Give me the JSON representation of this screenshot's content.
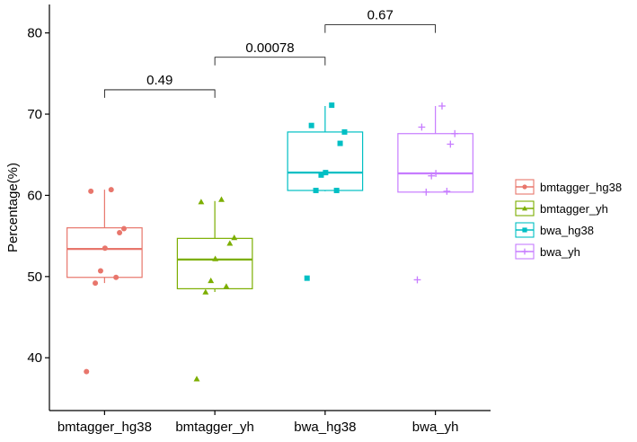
{
  "chart_data": {
    "type": "box",
    "title": "",
    "xlabel": "",
    "ylabel": "Percentage(%)",
    "ylim": [
      33.5,
      83.5
    ],
    "yticks": [
      40,
      50,
      60,
      70,
      80
    ],
    "grid": false,
    "legend_position": "right",
    "categories": [
      "bmtagger_hg38",
      "bmtagger_yh",
      "bwa_hg38",
      "bwa_yh"
    ],
    "series": [
      {
        "name": "bmtagger_hg38",
        "color": "#E8766C",
        "marker": "circle",
        "box": {
          "min": 49.2,
          "q1": 49.9,
          "median": 53.4,
          "q3": 56.0,
          "max": 60.7
        },
        "points": [
          38.3,
          49.2,
          49.9,
          50.7,
          53.5,
          55.4,
          55.9,
          60.5,
          60.7
        ]
      },
      {
        "name": "bmtagger_yh",
        "color": "#7CAE00",
        "marker": "triangle",
        "box": {
          "min": 48.1,
          "q1": 48.5,
          "median": 52.1,
          "q3": 54.7,
          "max": 59.3
        },
        "points": [
          37.4,
          48.1,
          48.8,
          49.5,
          52.2,
          54.1,
          54.8,
          59.2,
          59.5
        ]
      },
      {
        "name": "bwa_hg38",
        "color": "#00BFC4",
        "marker": "square",
        "box": {
          "min": 60.5,
          "q1": 60.6,
          "median": 62.8,
          "q3": 67.8,
          "max": 71.0
        },
        "points": [
          49.8,
          60.6,
          60.6,
          62.5,
          62.8,
          66.4,
          67.8,
          68.6,
          71.1
        ]
      },
      {
        "name": "bwa_yh",
        "color": "#C77CFF",
        "marker": "plus",
        "box": {
          "min": 60.4,
          "q1": 60.4,
          "median": 62.7,
          "q3": 67.6,
          "max": 71.0
        },
        "points": [
          49.6,
          60.4,
          60.5,
          62.4,
          62.7,
          66.3,
          67.6,
          68.4,
          71.0
        ]
      }
    ],
    "comparisons": [
      {
        "groups": [
          "bmtagger_hg38",
          "bmtagger_yh"
        ],
        "p_value": "0.49",
        "y": 73.0
      },
      {
        "groups": [
          "bmtagger_yh",
          "bwa_hg38"
        ],
        "p_value": "0.00078",
        "y": 77.0
      },
      {
        "groups": [
          "bwa_hg38",
          "bwa_yh"
        ],
        "p_value": "0.67",
        "y": 81.0
      }
    ]
  }
}
